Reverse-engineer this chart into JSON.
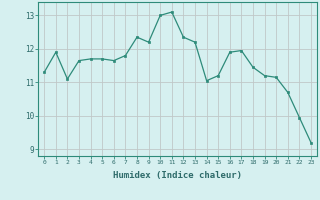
{
  "x": [
    0,
    1,
    2,
    3,
    4,
    5,
    6,
    7,
    8,
    9,
    10,
    11,
    12,
    13,
    14,
    15,
    16,
    17,
    18,
    19,
    20,
    21,
    22,
    23
  ],
  "y": [
    11.3,
    11.9,
    11.1,
    11.65,
    11.7,
    11.7,
    11.65,
    11.8,
    12.35,
    12.2,
    13.0,
    13.1,
    12.35,
    12.2,
    11.05,
    11.2,
    11.9,
    11.95,
    11.45,
    11.2,
    11.15,
    10.7,
    9.95,
    9.2
  ],
  "line_color": "#2e8b7a",
  "marker_color": "#2e8b7a",
  "bg_color": "#d6f0f0",
  "grid_color": "#c0c8c8",
  "xlabel": "Humidex (Indice chaleur)",
  "ylim": [
    8.8,
    13.4
  ],
  "xlim": [
    -0.5,
    23.5
  ],
  "yticks": [
    9,
    10,
    11,
    12,
    13
  ],
  "xticks": [
    0,
    1,
    2,
    3,
    4,
    5,
    6,
    7,
    8,
    9,
    10,
    11,
    12,
    13,
    14,
    15,
    16,
    17,
    18,
    19,
    20,
    21,
    22,
    23
  ]
}
